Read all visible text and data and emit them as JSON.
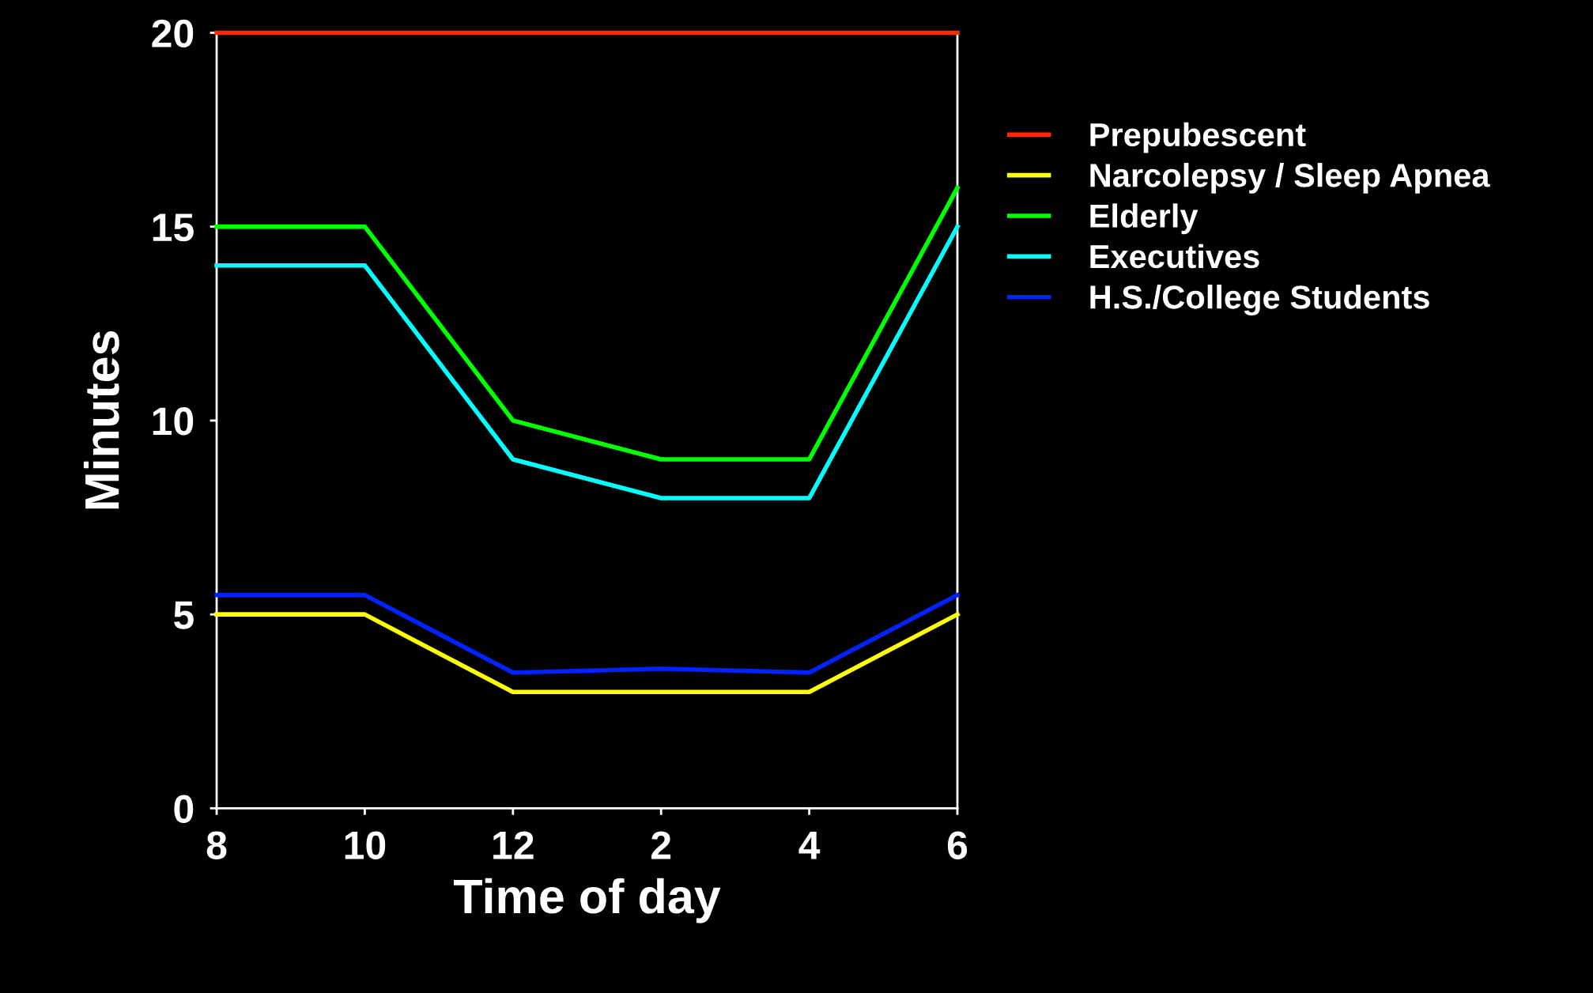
{
  "chart_data": {
    "type": "line",
    "xlabel": "Time of day",
    "ylabel": "Minutes",
    "categories": [
      "8",
      "10",
      "12",
      "2",
      "4",
      "6"
    ],
    "series": [
      {
        "name": "Prepubescent",
        "color": "#ff2a00",
        "values": [
          20,
          20,
          20,
          20,
          20,
          20
        ]
      },
      {
        "name": "Narcolepsy / Sleep Apnea",
        "color": "#ffff00",
        "values": [
          5,
          5,
          3,
          3,
          3,
          5
        ]
      },
      {
        "name": "Elderly",
        "color": "#00ff00",
        "values": [
          15,
          15,
          10,
          9,
          9,
          16
        ]
      },
      {
        "name": "Executives",
        "color": "#00ffff",
        "values": [
          14,
          14,
          9,
          8,
          8,
          15
        ]
      },
      {
        "name": "H.S./College Students",
        "color": "#0022ff",
        "values": [
          5.5,
          5.5,
          3.5,
          3.6,
          3.5,
          5.5
        ]
      }
    ],
    "ylim": [
      0,
      20
    ],
    "yticks": [
      0,
      5,
      10,
      15,
      20
    ],
    "grid": false,
    "legend": "right",
    "marker": "none",
    "line_style": "solid"
  }
}
